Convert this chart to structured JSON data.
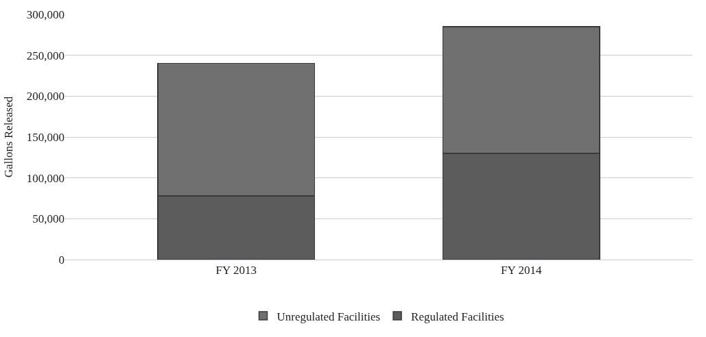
{
  "chart_data": {
    "type": "bar",
    "stacked": true,
    "ylabel": "Gallons Released",
    "categories": [
      "FY 2013",
      "FY 2014"
    ],
    "series": [
      {
        "name": "Regulated Facilities",
        "color": "#5c5c5c",
        "values": [
          78000,
          130000
        ]
      },
      {
        "name": "Unregulated Facilities",
        "color": "#707070",
        "values": [
          162000,
          155000
        ]
      }
    ],
    "ylim": [
      0,
      300000
    ],
    "yticks": [
      {
        "value": 0,
        "label": "0"
      },
      {
        "value": 50000,
        "label": "50,000"
      },
      {
        "value": 100000,
        "label": "100,000"
      },
      {
        "value": 150000,
        "label": "150,000"
      },
      {
        "value": 200000,
        "label": "200,000"
      },
      {
        "value": 250000,
        "label": "250,000"
      },
      {
        "value": 300000,
        "label": "300,000"
      }
    ],
    "grid": "y",
    "legend": "bottom"
  }
}
